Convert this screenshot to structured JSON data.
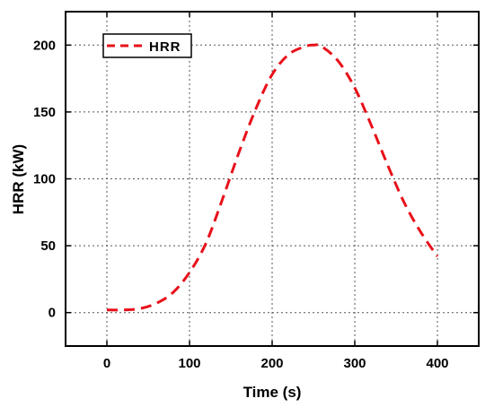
{
  "chart_data": {
    "type": "line",
    "title": "",
    "xlabel": "Time (s)",
    "ylabel": "HRR (kW)",
    "xlim": [
      -50,
      450
    ],
    "ylim": [
      -25,
      225
    ],
    "xticks": [
      0,
      100,
      200,
      300,
      400
    ],
    "yticks": [
      0,
      50,
      100,
      150,
      200
    ],
    "grid": true,
    "legend_position": "top-left",
    "series": [
      {
        "name": "HRR",
        "color": "#e8101a",
        "line_style": "dashed",
        "x": [
          0,
          20,
          40,
          60,
          80,
          100,
          120,
          140,
          160,
          180,
          200,
          220,
          240,
          250,
          260,
          280,
          300,
          320,
          340,
          360,
          380,
          400
        ],
        "y": [
          2,
          2,
          3,
          7,
          15,
          30,
          52,
          85,
          120,
          152,
          178,
          193,
          199,
          200,
          199,
          188,
          168,
          140,
          110,
          82,
          60,
          42
        ]
      }
    ]
  }
}
